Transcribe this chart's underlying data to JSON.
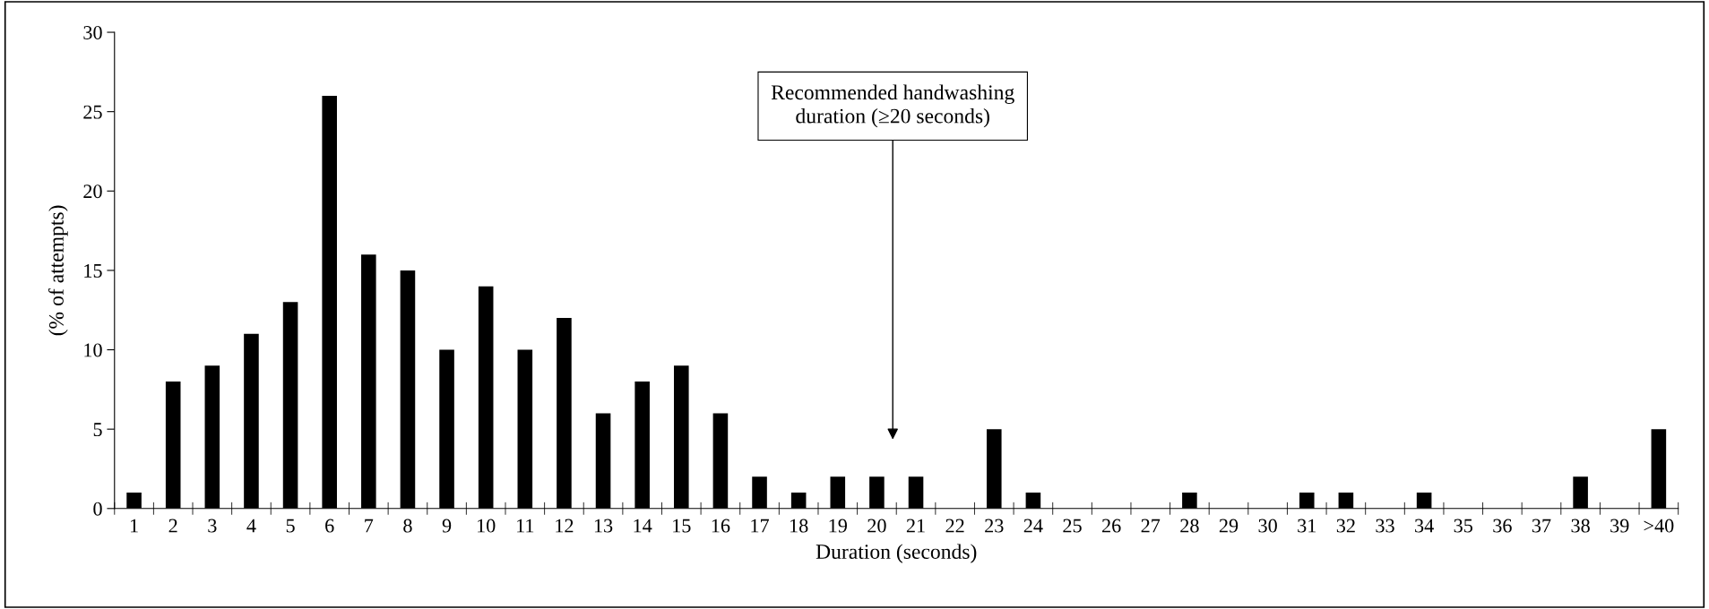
{
  "chart_data": {
    "type": "bar",
    "xlabel": "Duration (seconds)",
    "ylabel": "(% of attempts)",
    "categories": [
      "1",
      "2",
      "3",
      "4",
      "5",
      "6",
      "7",
      "8",
      "9",
      "10",
      "11",
      "12",
      "13",
      "14",
      "15",
      "16",
      "17",
      "18",
      "19",
      "20",
      "21",
      "22",
      "23",
      "24",
      "25",
      "26",
      "27",
      "28",
      "29",
      "30",
      "31",
      "32",
      "33",
      "34",
      "35",
      "36",
      "37",
      "38",
      "39",
      ">40"
    ],
    "values": [
      1,
      8,
      9,
      11,
      13,
      26,
      16,
      15,
      10,
      14,
      10,
      12,
      6,
      8,
      9,
      6,
      2,
      1,
      2,
      2,
      2,
      0,
      5,
      1,
      0,
      0,
      0,
      1,
      0,
      0,
      1,
      1,
      0,
      1,
      0,
      0,
      0,
      2,
      0,
      5
    ],
    "color": "#000000",
    "ylim": [
      0,
      30
    ],
    "yticks": [
      0,
      5,
      10,
      15,
      20,
      25,
      30
    ],
    "grid": false,
    "legend": false,
    "annotations": [
      "Recommended handwashing\nduration (≥20 seconds)"
    ]
  }
}
